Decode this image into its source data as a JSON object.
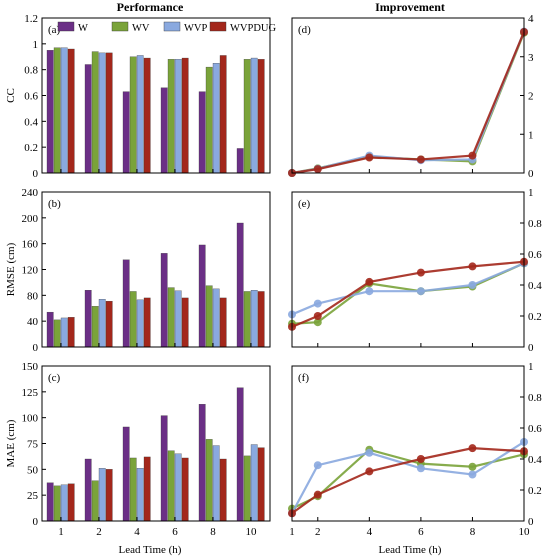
{
  "titles": {
    "left": "Performance",
    "right": "Improvement"
  },
  "xlabel": "Lead Time (h)",
  "legend": [
    {
      "name": "W",
      "color": "#6b2f86"
    },
    {
      "name": "WV",
      "color": "#7aa33a"
    },
    {
      "name": "WVP",
      "color": "#8aa9df"
    },
    {
      "name": "WVPDUG",
      "color": "#a3271b"
    }
  ],
  "chart_data": [
    {
      "panel": "(a)",
      "type": "bar",
      "ylabel": "CC",
      "ylim": [
        0,
        1.2
      ],
      "yticks": [
        0,
        0.2,
        0.4,
        0.6,
        0.8,
        1,
        1.2
      ],
      "categories": [
        "1",
        "2",
        "4",
        "6",
        "8",
        "10"
      ],
      "series": [
        {
          "name": "W",
          "values": [
            0.95,
            0.84,
            0.63,
            0.66,
            0.63,
            0.19
          ]
        },
        {
          "name": "WV",
          "values": [
            0.97,
            0.94,
            0.9,
            0.88,
            0.82,
            0.88
          ]
        },
        {
          "name": "WVP",
          "values": [
            0.97,
            0.93,
            0.91,
            0.88,
            0.85,
            0.89
          ]
        },
        {
          "name": "WVPDUG",
          "values": [
            0.96,
            0.93,
            0.89,
            0.89,
            0.91,
            0.88
          ]
        }
      ]
    },
    {
      "panel": "(b)",
      "type": "bar",
      "ylabel": "RMSE (cm)",
      "ylim": [
        0,
        240
      ],
      "yticks": [
        0,
        40,
        80,
        120,
        160,
        200,
        240
      ],
      "categories": [
        "1",
        "2",
        "4",
        "6",
        "8",
        "10"
      ],
      "series": [
        {
          "name": "W",
          "values": [
            54,
            88,
            135,
            145,
            158,
            192
          ]
        },
        {
          "name": "WV",
          "values": [
            42,
            63,
            86,
            92,
            95,
            86
          ]
        },
        {
          "name": "WVP",
          "values": [
            45,
            74,
            73,
            87,
            90,
            88
          ]
        },
        {
          "name": "WVPDUG",
          "values": [
            46,
            71,
            76,
            76,
            76,
            86
          ]
        }
      ]
    },
    {
      "panel": "(c)",
      "type": "bar",
      "ylabel": "MAE (cm)",
      "ylim": [
        0,
        150
      ],
      "yticks": [
        0,
        25,
        50,
        75,
        100,
        125,
        150
      ],
      "categories": [
        "1",
        "2",
        "4",
        "6",
        "8",
        "10"
      ],
      "series": [
        {
          "name": "W",
          "values": [
            37,
            60,
            91,
            102,
            113,
            129
          ]
        },
        {
          "name": "WV",
          "values": [
            34,
            39,
            61,
            68,
            79,
            63
          ]
        },
        {
          "name": "WVP",
          "values": [
            35,
            51,
            51,
            65,
            73,
            74
          ]
        },
        {
          "name": "WVPDUG",
          "values": [
            36,
            50,
            62,
            61,
            60,
            71
          ]
        }
      ]
    },
    {
      "panel": "(d)",
      "type": "line",
      "x": [
        1,
        2,
        4,
        6,
        8,
        10
      ],
      "xlim": [
        1,
        10
      ],
      "ylim": [
        0,
        4
      ],
      "yticks": [
        0,
        1,
        2,
        3,
        4
      ],
      "series": [
        {
          "name": "WV",
          "values": [
            0.0,
            0.12,
            0.42,
            0.35,
            0.3,
            3.62
          ]
        },
        {
          "name": "WVP",
          "values": [
            0.0,
            0.11,
            0.45,
            0.33,
            0.35,
            3.65
          ]
        },
        {
          "name": "WVPDUG",
          "values": [
            0.0,
            0.1,
            0.4,
            0.35,
            0.45,
            3.64
          ]
        }
      ]
    },
    {
      "panel": "(e)",
      "type": "line",
      "x": [
        1,
        2,
        4,
        6,
        8,
        10
      ],
      "xlim": [
        1,
        10
      ],
      "ylim": [
        0,
        1
      ],
      "yticks": [
        0,
        0.2,
        0.4,
        0.6,
        0.8,
        1
      ],
      "series": [
        {
          "name": "WV",
          "values": [
            0.15,
            0.16,
            0.41,
            0.36,
            0.39,
            0.54
          ]
        },
        {
          "name": "WVP",
          "values": [
            0.21,
            0.28,
            0.36,
            0.36,
            0.4,
            0.54
          ]
        },
        {
          "name": "WVPDUG",
          "values": [
            0.13,
            0.2,
            0.42,
            0.48,
            0.52,
            0.55
          ]
        }
      ]
    },
    {
      "panel": "(f)",
      "type": "line",
      "x": [
        1,
        2,
        4,
        6,
        8,
        10
      ],
      "xlim": [
        1,
        10
      ],
      "ylim": [
        0,
        1
      ],
      "yticks": [
        0,
        0.2,
        0.4,
        0.6,
        0.8,
        1
      ],
      "series": [
        {
          "name": "WV",
          "values": [
            0.08,
            0.16,
            0.46,
            0.37,
            0.35,
            0.43
          ]
        },
        {
          "name": "WVP",
          "values": [
            0.05,
            0.36,
            0.44,
            0.34,
            0.3,
            0.51
          ]
        },
        {
          "name": "WVPDUG",
          "values": [
            0.05,
            0.17,
            0.32,
            0.4,
            0.47,
            0.45
          ]
        }
      ]
    }
  ]
}
